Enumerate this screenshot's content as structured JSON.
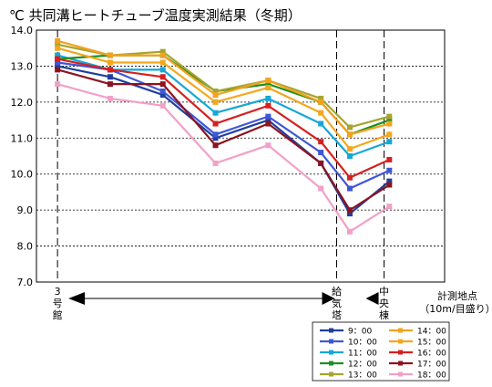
{
  "chart_data": {
    "type": "line",
    "title": "℃ 共同溝ヒートチューブ温度実測結果（冬期）",
    "xlabel": "計測地点\n（10m/目盛り）",
    "ylabel": "",
    "ylim": [
      7.0,
      14.0
    ],
    "y_ticks": [
      "14.0",
      "13.0",
      "12.0",
      "11.0",
      "10.0",
      "9.0",
      "8.0",
      "7.0"
    ],
    "grid": true,
    "legend_position": "bottom-right",
    "x": [
      0,
      1,
      2,
      3,
      4,
      5,
      5.55,
      6.3
    ],
    "vertical_markers": [
      {
        "x": 0,
        "label": "3\n号\n館"
      },
      {
        "x": 5.3,
        "label": "給\n気\n塔"
      },
      {
        "x": 6.2,
        "label": "中\n央\n棟"
      }
    ],
    "series": [
      {
        "name": "9：00",
        "color": "#1F3F9F",
        "values": [
          13.0,
          12.7,
          12.2,
          11.0,
          11.5,
          10.3,
          8.9,
          9.8
        ]
      },
      {
        "name": "10：00",
        "color": "#3F56D6",
        "values": [
          13.1,
          12.9,
          12.3,
          11.1,
          11.6,
          10.6,
          9.6,
          10.1
        ]
      },
      {
        "name": "11：00",
        "color": "#14A8D6",
        "values": [
          13.3,
          12.9,
          12.9,
          11.7,
          12.1,
          11.4,
          10.5,
          10.9
        ]
      },
      {
        "name": "12：00",
        "color": "#1F8F1F",
        "values": [
          13.2,
          13.3,
          13.3,
          12.3,
          12.5,
          12.0,
          11.1,
          11.5
        ]
      },
      {
        "name": "13：00",
        "color": "#A5A52F",
        "values": [
          13.6,
          13.3,
          13.4,
          12.3,
          12.6,
          12.1,
          11.3,
          11.6
        ]
      },
      {
        "name": "14：00",
        "color": "#F2A21E",
        "values": [
          13.7,
          13.3,
          13.3,
          12.2,
          12.6,
          12.0,
          11.1,
          11.4
        ]
      },
      {
        "name": "15：00",
        "color": "#F2A81E",
        "values": [
          13.5,
          13.1,
          13.1,
          12.0,
          12.4,
          11.7,
          10.7,
          11.1
        ]
      },
      {
        "name": "16：00",
        "color": "#D62020",
        "values": [
          13.2,
          12.9,
          12.7,
          11.4,
          11.9,
          10.9,
          9.9,
          10.4
        ]
      },
      {
        "name": "17：00",
        "color": "#8A1420",
        "values": [
          12.9,
          12.5,
          12.5,
          10.8,
          11.4,
          10.3,
          9.0,
          9.7
        ]
      },
      {
        "name": "18：00",
        "color": "#F2A0C8",
        "values": [
          12.5,
          12.1,
          11.9,
          10.3,
          10.8,
          9.6,
          8.4,
          9.1
        ]
      }
    ]
  }
}
